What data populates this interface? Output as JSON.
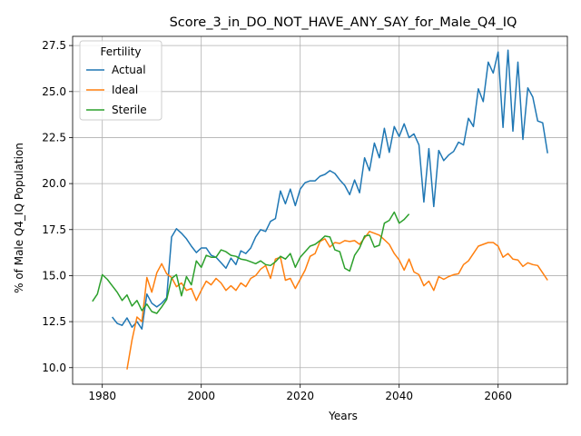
{
  "chart_data": {
    "type": "line",
    "title": "Score_3_in_DO_NOT_HAVE_ANY_SAY_for_Male_Q4_IQ",
    "xlabel": "Years",
    "ylabel": "% of Male Q4_IQ Population",
    "xlim": [
      1974,
      2074
    ],
    "ylim": [
      9.1,
      28.0
    ],
    "xticks": [
      1980,
      2000,
      2020,
      2040,
      2060
    ],
    "xtick_labels": [
      "1980",
      "2000",
      "2020",
      "2040",
      "2060"
    ],
    "yticks": [
      10.0,
      12.5,
      15.0,
      17.5,
      20.0,
      22.5,
      25.0,
      27.5
    ],
    "ytick_labels": [
      "10.0",
      "12.5",
      "15.0",
      "17.5",
      "20.0",
      "22.5",
      "25.0",
      "27.5"
    ],
    "grid": true,
    "legend": {
      "title": "Fertility",
      "position": "top-left"
    },
    "series": [
      {
        "name": "Actual",
        "color": "#1f77b4",
        "x": [
          1982,
          1983,
          1984,
          1985,
          1986,
          1987,
          1988,
          1989,
          1990,
          1991,
          1992,
          1993,
          1994,
          1995,
          1996,
          1997,
          1998,
          1999,
          2000,
          2001,
          2002,
          2003,
          2004,
          2005,
          2006,
          2007,
          2008,
          2009,
          2010,
          2011,
          2012,
          2013,
          2014,
          2015,
          2016,
          2017,
          2018,
          2019,
          2020,
          2021,
          2022,
          2023,
          2024,
          2025,
          2026,
          2027,
          2028,
          2029,
          2030,
          2031,
          2032,
          2033,
          2034,
          2035,
          2036,
          2037,
          2038,
          2039,
          2040,
          2041,
          2042,
          2043,
          2044,
          2045,
          2046,
          2047,
          2048,
          2049,
          2050,
          2051,
          2052,
          2053,
          2054,
          2055,
          2056,
          2057,
          2058,
          2059,
          2060,
          2061,
          2062,
          2063,
          2064,
          2065,
          2066,
          2067,
          2068,
          2069,
          2070
        ],
        "y": [
          12.75,
          12.4,
          12.3,
          12.7,
          12.2,
          12.5,
          12.1,
          14.0,
          13.5,
          13.3,
          13.5,
          13.8,
          17.1,
          17.55,
          17.3,
          17.0,
          16.6,
          16.25,
          16.5,
          16.5,
          16.1,
          16.0,
          15.7,
          15.4,
          15.95,
          15.6,
          16.35,
          16.2,
          16.5,
          17.1,
          17.5,
          17.4,
          17.95,
          18.1,
          19.6,
          18.9,
          19.7,
          18.8,
          19.7,
          20.05,
          20.15,
          20.15,
          20.4,
          20.5,
          20.7,
          20.55,
          20.2,
          19.9,
          19.4,
          20.2,
          19.5,
          21.4,
          20.7,
          22.2,
          21.4,
          23.0,
          21.7,
          23.1,
          22.55,
          23.25,
          22.5,
          22.7,
          22.1,
          19.0,
          21.9,
          18.75,
          21.8,
          21.25,
          21.55,
          21.75,
          22.25,
          22.1,
          23.55,
          23.1,
          25.15,
          24.45,
          26.6,
          26.0,
          27.15,
          23.05,
          27.25,
          22.85,
          26.6,
          22.4,
          25.2,
          24.7,
          23.4,
          23.3,
          21.65
        ]
      },
      {
        "name": "Ideal",
        "color": "#ff7f0e",
        "x": [
          1985,
          1986,
          1987,
          1988,
          1989,
          1990,
          1991,
          1992,
          1993,
          1994,
          1995,
          1996,
          1997,
          1998,
          1999,
          2000,
          2001,
          2002,
          2003,
          2004,
          2005,
          2006,
          2007,
          2008,
          2009,
          2010,
          2011,
          2012,
          2013,
          2014,
          2015,
          2016,
          2017,
          2018,
          2019,
          2020,
          2021,
          2022,
          2023,
          2024,
          2025,
          2026,
          2027,
          2028,
          2029,
          2030,
          2031,
          2032,
          2033,
          2034,
          2035,
          2036,
          2037,
          2038,
          2039,
          2040,
          2041,
          2042,
          2043,
          2044,
          2045,
          2046,
          2047,
          2048,
          2049,
          2050,
          2051,
          2052,
          2053,
          2054,
          2055,
          2056,
          2057,
          2058,
          2059,
          2060,
          2061,
          2062,
          2063,
          2064,
          2065,
          2066,
          2067,
          2068,
          2069,
          2070
        ],
        "y": [
          9.9,
          11.5,
          12.75,
          12.5,
          14.9,
          14.1,
          15.15,
          15.65,
          15.1,
          14.9,
          14.4,
          14.6,
          14.2,
          14.3,
          13.65,
          14.2,
          14.7,
          14.5,
          14.85,
          14.6,
          14.2,
          14.45,
          14.2,
          14.6,
          14.4,
          14.85,
          15.0,
          15.35,
          15.55,
          14.85,
          15.9,
          16.0,
          14.75,
          14.85,
          14.3,
          14.8,
          15.3,
          16.05,
          16.2,
          16.85,
          17.0,
          16.55,
          16.8,
          16.75,
          16.9,
          16.85,
          16.9,
          16.7,
          17.05,
          17.4,
          17.3,
          17.2,
          16.95,
          16.7,
          16.2,
          15.85,
          15.3,
          15.9,
          15.2,
          15.05,
          14.45,
          14.7,
          14.2,
          14.95,
          14.8,
          14.95,
          15.05,
          15.1,
          15.6,
          15.8,
          16.2,
          16.6,
          16.7,
          16.8,
          16.8,
          16.6,
          16.0,
          16.2,
          15.9,
          15.85,
          15.5,
          15.7,
          15.6,
          15.55,
          15.15,
          14.75
        ]
      },
      {
        "name": "Sterile",
        "color": "#2ca02c",
        "x": [
          1978,
          1979,
          1980,
          1981,
          1982,
          1983,
          1984,
          1985,
          1986,
          1987,
          1988,
          1989,
          1990,
          1991,
          1992,
          1993,
          1994,
          1995,
          1996,
          1997,
          1998,
          1999,
          2000,
          2001,
          2002,
          2003,
          2004,
          2005,
          2006,
          2007,
          2008,
          2009,
          2010,
          2011,
          2012,
          2013,
          2014,
          2015,
          2016,
          2017,
          2018,
          2019,
          2020,
          2021,
          2022,
          2023,
          2024,
          2025,
          2026,
          2027,
          2028,
          2029,
          2030,
          2031,
          2032,
          2033,
          2034,
          2035,
          2036,
          2037,
          2038,
          2039,
          2040,
          2041,
          2042
        ],
        "y": [
          13.6,
          14.0,
          15.05,
          14.8,
          14.45,
          14.1,
          13.65,
          13.95,
          13.35,
          13.65,
          13.1,
          13.45,
          13.05,
          12.95,
          13.3,
          13.7,
          14.85,
          15.05,
          13.9,
          14.95,
          14.5,
          15.8,
          15.45,
          16.1,
          16.0,
          16.0,
          16.4,
          16.3,
          16.1,
          16.05,
          15.9,
          15.85,
          15.75,
          15.65,
          15.8,
          15.6,
          15.55,
          15.75,
          16.05,
          15.9,
          16.2,
          15.45,
          16.0,
          16.3,
          16.6,
          16.7,
          16.9,
          17.15,
          17.1,
          16.4,
          16.3,
          15.4,
          15.25,
          16.1,
          16.5,
          17.15,
          17.2,
          16.55,
          16.65,
          17.85,
          18.0,
          18.45,
          17.85,
          18.05,
          18.35
        ]
      }
    ]
  }
}
